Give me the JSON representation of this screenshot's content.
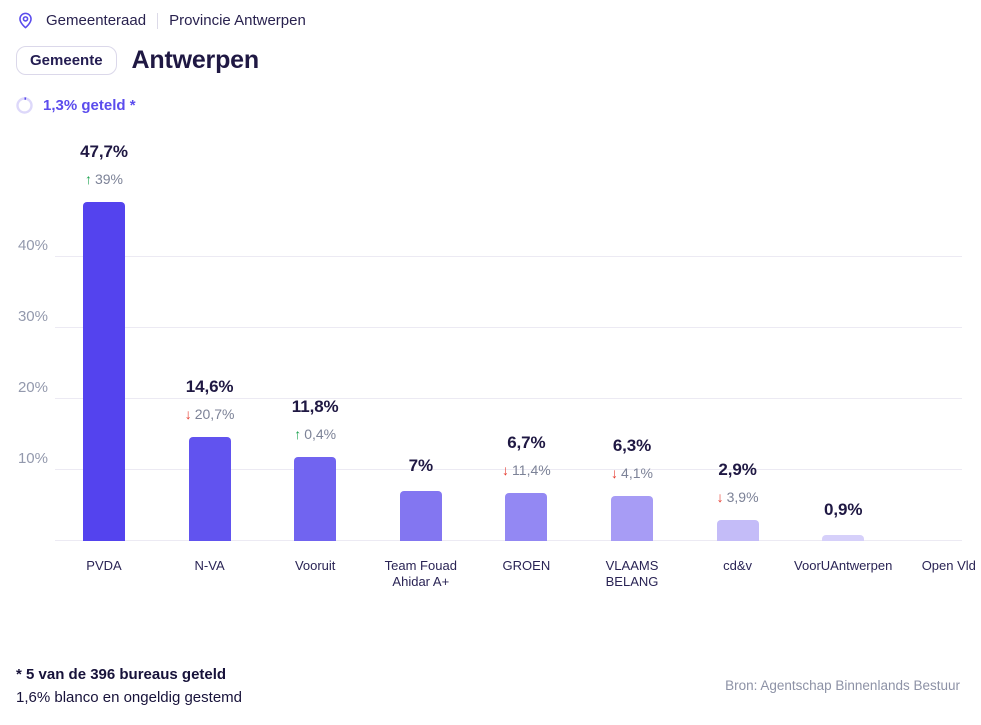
{
  "breadcrumb": {
    "location_label": "Gemeenteraad",
    "region_label": "Provincie Antwerpen"
  },
  "header": {
    "badge": "Gemeente",
    "title": "Antwerpen"
  },
  "progress": {
    "label": "1,3% geteld *",
    "percent_counted": 1.3,
    "ring_track_color": "#ddd8fa",
    "ring_fill_color": "#5b4ced",
    "text_color": "#5b4ced"
  },
  "chart_data": {
    "type": "bar",
    "title": "",
    "xlabel": "",
    "ylabel": "",
    "categories": [
      "PVDA",
      "N-VA",
      "Vooruit",
      "Team Fouad\nAhidar A+",
      "GROEN",
      "VLAAMS\nBELANG",
      "cd&v",
      "VoorUAntwerpen",
      "Open Vld"
    ],
    "values": [
      47.7,
      14.6,
      11.8,
      7,
      6.7,
      6.3,
      2.9,
      0.9,
      null
    ],
    "value_labels": [
      "47,7%",
      "14,6%",
      "11,8%",
      "7%",
      "6,7%",
      "6,3%",
      "2,9%",
      "0,9%",
      null
    ],
    "changes": [
      {
        "direction": "up",
        "label": "39%"
      },
      {
        "direction": "down",
        "label": "20,7%"
      },
      {
        "direction": "up",
        "label": "0,4%"
      },
      null,
      {
        "direction": "down",
        "label": "11,4%"
      },
      {
        "direction": "down",
        "label": "4,1%"
      },
      {
        "direction": "down",
        "label": "3,9%"
      },
      null,
      null
    ],
    "bar_colors": [
      "#5443ee",
      "#6153ef",
      "#7164f0",
      "#8376f1",
      "#9388f3",
      "#a79cf5",
      "#c4bcf8",
      "#d6d0fa",
      "#e6e3fc"
    ],
    "y_ticks": [
      "10%",
      "20%",
      "30%",
      "40%"
    ],
    "ylim": [
      0,
      52
    ],
    "grid": true,
    "legend": false,
    "up_arrow": "↑",
    "down_arrow": "↓",
    "up_color": "#1ea350",
    "down_color": "#e63a2e"
  },
  "footnote": {
    "line1": "* 5 van de 396 bureaus geteld",
    "line2": "1,6% blanco en ongeldig gestemd"
  },
  "source": "Bron: Agentschap Binnenlands Bestuur"
}
